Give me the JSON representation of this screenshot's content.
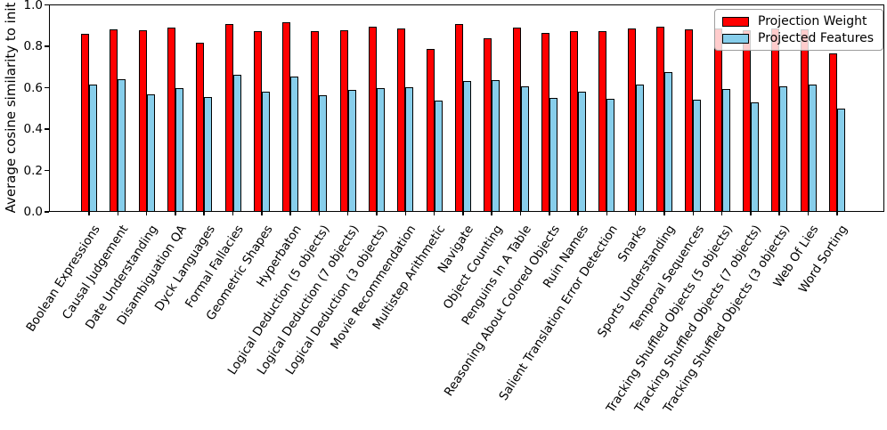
{
  "chart_data": {
    "type": "bar",
    "title": "",
    "xlabel": "",
    "ylabel": "Average cosine similarity to init",
    "ylim": [
      0.0,
      1.0
    ],
    "yticks": [
      0.0,
      0.2,
      0.4,
      0.6,
      0.8,
      1.0
    ],
    "grid": false,
    "legend_position": "upper right",
    "categories": [
      "Boolean Expressions",
      "Causal Judgement",
      "Date Understanding",
      "Disambiguation QA",
      "Dyck Languages",
      "Formal Fallacies",
      "Geometric Shapes",
      "Hyperbaton",
      "Logical Deduction (5 objects)",
      "Logical Deduction (7 objects)",
      "Logical Deduction (3 objects)",
      "Movie Recommendation",
      "Multistep Arithmetic",
      "Navigate",
      "Object Counting",
      "Penguins In A Table",
      "Reasoning About Colored Objects",
      "Ruin Names",
      "Salient Translation Error Detection",
      "Snarks",
      "Sports Understanding",
      "Temporal Sequences",
      "Tracking Shuffled Objects (5 objects)",
      "Tracking Shuffled Objects (7 objects)",
      "Tracking Shuffled Objects (3 objects)",
      "Web Of Lies",
      "Word Sorting"
    ],
    "series": [
      {
        "name": "Projection Weight",
        "color": "#ff0000",
        "values": [
          0.862,
          0.881,
          0.877,
          0.89,
          0.817,
          0.91,
          0.876,
          0.919,
          0.874,
          0.877,
          0.896,
          0.886,
          0.786,
          0.907,
          0.838,
          0.893,
          0.864,
          0.872,
          0.874,
          0.886,
          0.896,
          0.881,
          0.885,
          0.879,
          0.886,
          0.881,
          0.767
        ]
      },
      {
        "name": "Projected Features",
        "color": "#87ceeb",
        "values": [
          0.614,
          0.643,
          0.567,
          0.597,
          0.557,
          0.662,
          0.579,
          0.653,
          0.564,
          0.589,
          0.6,
          0.603,
          0.538,
          0.633,
          0.639,
          0.607,
          0.55,
          0.583,
          0.546,
          0.614,
          0.674,
          0.543,
          0.593,
          0.531,
          0.609,
          0.614,
          0.5
        ]
      }
    ],
    "bar_edge_color": "#000000",
    "axis_color": "#000000",
    "background_color": "#ffffff"
  }
}
